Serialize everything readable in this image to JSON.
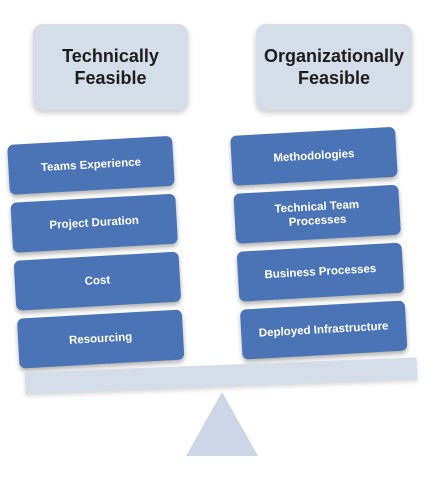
{
  "left": {
    "header": "Technically\nFeasible",
    "blocks": [
      "Teams Experience",
      "Project Duration",
      "Cost",
      "Resourcing"
    ]
  },
  "right": {
    "header": "Organizationally\nFeasible",
    "blocks": [
      "Methodologies",
      "Technical Team\nProcesses",
      "Business Processes",
      "Deployed Infrastructure"
    ]
  },
  "colors": {
    "block": "#4a74b6",
    "header": "#d5dde9",
    "beam": "#d5dde9",
    "fulcrum": "#ccd6e6"
  }
}
